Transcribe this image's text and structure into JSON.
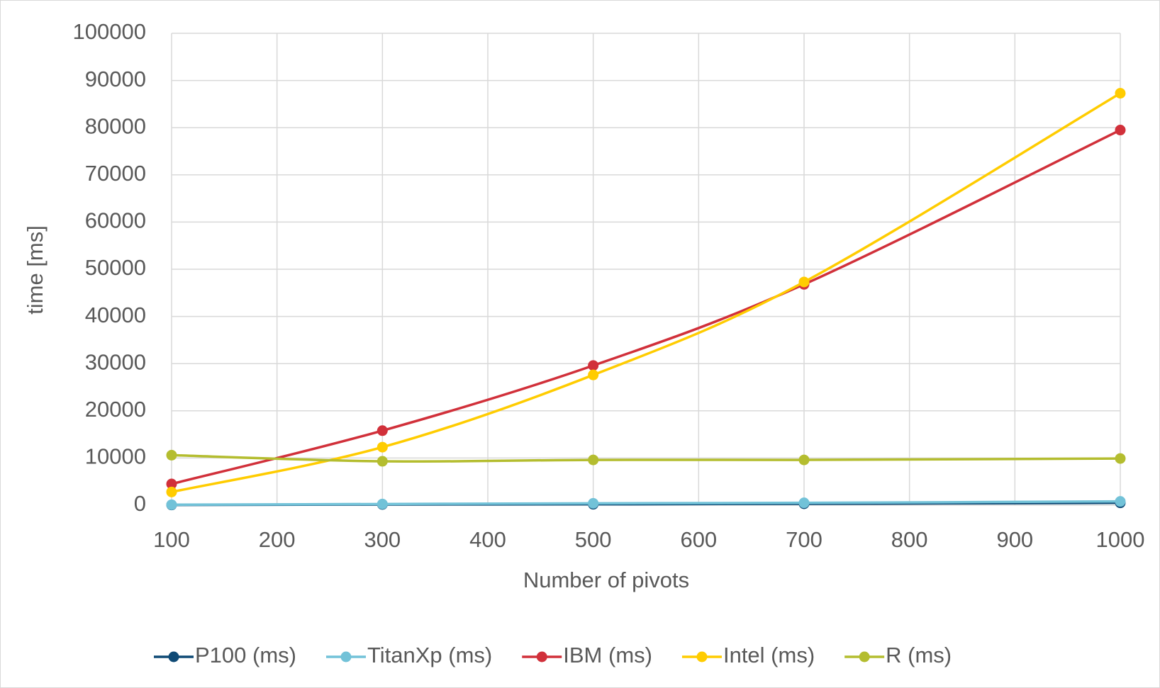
{
  "chart_data": {
    "type": "line",
    "smooth": true,
    "x_label": "Number of  pivots",
    "y_label": "time [ms]",
    "x": [
      100,
      300,
      500,
      700,
      1000
    ],
    "series": [
      {
        "name": "P100 (ms)",
        "color": "#0f4a75",
        "values": [
          50,
          150,
          200,
          300,
          500
        ]
      },
      {
        "name": "TitanXp (ms)",
        "color": "#72c2d8",
        "values": [
          100,
          250,
          400,
          500,
          800
        ]
      },
      {
        "name": "IBM (ms)",
        "color": "#d1303a",
        "values": [
          4500,
          15800,
          29600,
          46800,
          79500
        ]
      },
      {
        "name": "Intel (ms)",
        "color": "#ffcc00",
        "values": [
          2800,
          12300,
          27600,
          47300,
          87300
        ]
      },
      {
        "name": "R (ms)",
        "color": "#b4bd2f",
        "values": [
          10600,
          9300,
          9600,
          9600,
          9900
        ]
      }
    ],
    "xlim": [
      100,
      1000
    ],
    "xticks": [
      100,
      200,
      300,
      400,
      500,
      600,
      700,
      800,
      900,
      1000
    ],
    "ylim": [
      0,
      100000
    ],
    "yticks": [
      0,
      10000,
      20000,
      30000,
      40000,
      50000,
      60000,
      70000,
      80000,
      90000,
      100000
    ],
    "grid": true,
    "legend": "bottom"
  }
}
